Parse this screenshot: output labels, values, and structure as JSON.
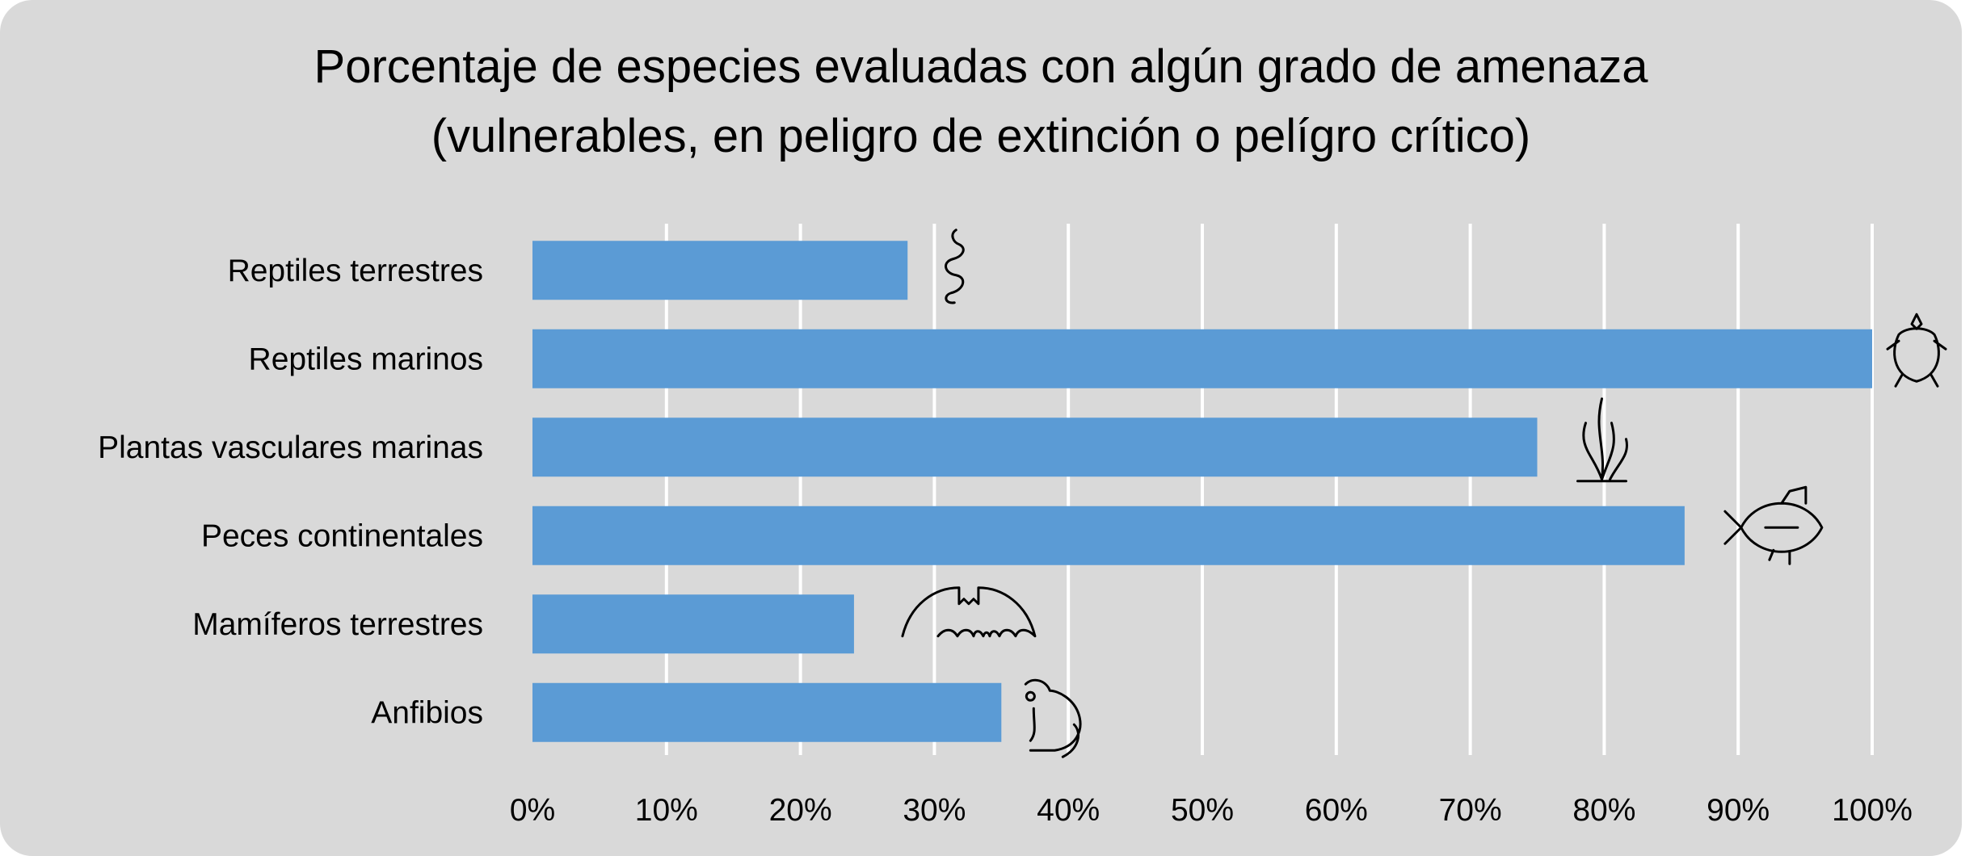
{
  "chart_data": {
    "type": "bar",
    "orientation": "horizontal",
    "title": [
      "Porcentaje de especies evaluadas con algún grado de amenaza",
      "(vulnerables, en peligro de extinción o pelígro crítico)"
    ],
    "categories": [
      "Reptiles terrestres",
      "Reptiles marinos",
      "Plantas vasculares marinas",
      "Peces continentales",
      "Mamíferos terrestres",
      "Anfibios"
    ],
    "values": [
      28,
      100,
      75,
      86,
      24,
      35
    ],
    "icons": [
      "snake-icon",
      "turtle-icon",
      "seaweed-icon",
      "fish-icon",
      "bat-icon",
      "frog-icon"
    ],
    "xlim": [
      0,
      100
    ],
    "xticks": [
      "0%",
      "10%",
      "20%",
      "30%",
      "40%",
      "50%",
      "60%",
      "70%",
      "80%",
      "90%",
      "100%"
    ],
    "grid": "vertical",
    "bar_color": "#5b9bd5",
    "background": "#d9d9d9"
  }
}
